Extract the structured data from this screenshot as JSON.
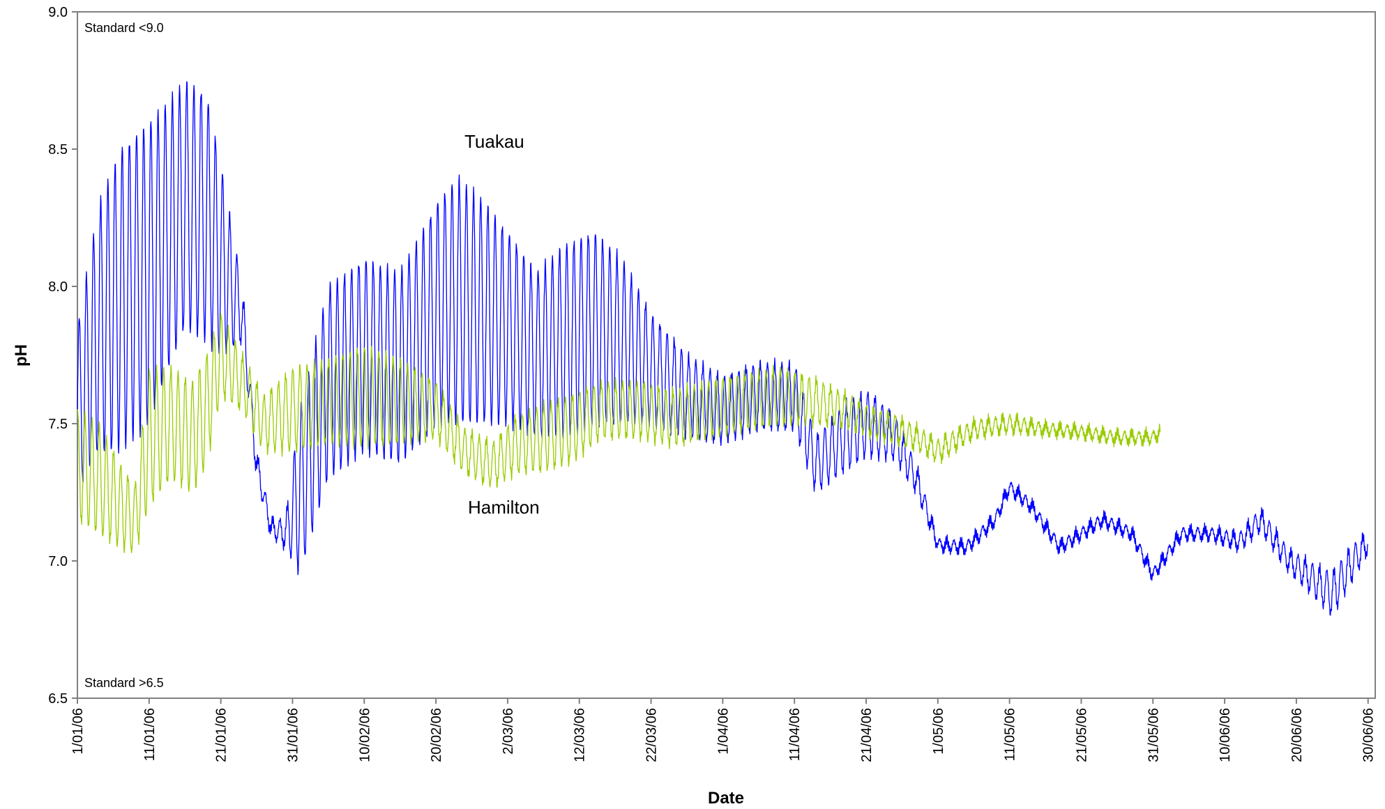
{
  "chart_data": {
    "type": "line",
    "title": "",
    "xlabel": "Date",
    "ylabel": "pH",
    "ylim": [
      6.5,
      9.0
    ],
    "xlim": [
      "2006-01-01",
      "2006-07-01"
    ],
    "yticks": [
      "6.5",
      "7.0",
      "7.5",
      "8.0",
      "8.5",
      "9.0"
    ],
    "xticks": [
      "1/01/06",
      "11/01/06",
      "21/01/06",
      "31/01/06",
      "10/02/06",
      "20/02/06",
      "2/03/06",
      "12/03/06",
      "22/03/06",
      "1/04/06",
      "11/04/06",
      "21/04/06",
      "1/05/06",
      "11/05/06",
      "21/05/06",
      "31/05/06",
      "10/06/06",
      "20/06/06",
      "30/06/06"
    ],
    "xtick_dates": [
      "2006-01-01",
      "2006-01-11",
      "2006-01-21",
      "2006-01-31",
      "2006-02-10",
      "2006-02-20",
      "2006-03-02",
      "2006-03-12",
      "2006-03-22",
      "2006-04-01",
      "2006-04-11",
      "2006-04-21",
      "2006-05-01",
      "2006-05-11",
      "2006-05-21",
      "2006-05-31",
      "2006-06-10",
      "2006-06-20",
      "2006-06-30"
    ],
    "annotations": [
      "Standard <9.0",
      "Standard >6.5"
    ],
    "grid": false,
    "series": [
      {
        "name": "Tuakau",
        "color": "#0000FF",
        "x": [
          "2006-01-01",
          "2006-01-04",
          "2006-01-07",
          "2006-01-11",
          "2006-01-13",
          "2006-01-16",
          "2006-01-19",
          "2006-01-21",
          "2006-01-24",
          "2006-01-26",
          "2006-01-28",
          "2006-01-30",
          "2006-02-01",
          "2006-02-05",
          "2006-02-10",
          "2006-02-15",
          "2006-02-20",
          "2006-02-23",
          "2006-02-27",
          "2006-03-02",
          "2006-03-06",
          "2006-03-10",
          "2006-03-14",
          "2006-03-18",
          "2006-03-22",
          "2006-03-27",
          "2006-04-01",
          "2006-04-06",
          "2006-04-11",
          "2006-04-14",
          "2006-04-18",
          "2006-04-21",
          "2006-04-25",
          "2006-04-28",
          "2006-05-01",
          "2006-05-05",
          "2006-05-09",
          "2006-05-11",
          "2006-05-14",
          "2006-05-18",
          "2006-05-21",
          "2006-05-24",
          "2006-05-28",
          "2006-05-31",
          "2006-06-04",
          "2006-06-08",
          "2006-06-12",
          "2006-06-15",
          "2006-06-19",
          "2006-06-23",
          "2006-06-25",
          "2006-06-28",
          "2006-06-30"
        ],
        "y": [
          7.55,
          7.85,
          7.95,
          8.05,
          8.15,
          8.3,
          8.25,
          8.1,
          7.9,
          7.35,
          7.12,
          7.1,
          7.25,
          7.65,
          7.75,
          7.7,
          7.9,
          7.95,
          7.9,
          7.85,
          7.75,
          7.8,
          7.85,
          7.8,
          7.7,
          7.6,
          7.55,
          7.6,
          7.6,
          7.35,
          7.45,
          7.5,
          7.45,
          7.3,
          7.06,
          7.05,
          7.15,
          7.27,
          7.2,
          7.05,
          7.1,
          7.15,
          7.1,
          6.95,
          7.1,
          7.1,
          7.07,
          7.15,
          7.0,
          6.92,
          6.88,
          7.0,
          7.07
        ],
        "amplitude": [
          0.3,
          0.45,
          0.55,
          0.55,
          0.5,
          0.45,
          0.45,
          0.35,
          0.1,
          0.05,
          0.03,
          0.05,
          0.3,
          0.35,
          0.35,
          0.35,
          0.4,
          0.45,
          0.4,
          0.35,
          0.3,
          0.35,
          0.35,
          0.3,
          0.2,
          0.15,
          0.12,
          0.12,
          0.12,
          0.1,
          0.12,
          0.12,
          0.08,
          0.05,
          0.02,
          0.02,
          0.02,
          0.02,
          0.02,
          0.02,
          0.02,
          0.02,
          0.02,
          0.02,
          0.02,
          0.02,
          0.03,
          0.04,
          0.04,
          0.06,
          0.08,
          0.06,
          0.04
        ]
      },
      {
        "name": "Hamilton",
        "color": "#99CC00",
        "x": [
          "2006-01-01",
          "2006-01-04",
          "2006-01-07",
          "2006-01-09",
          "2006-01-11",
          "2006-01-14",
          "2006-01-17",
          "2006-01-19",
          "2006-01-21",
          "2006-01-24",
          "2006-01-27",
          "2006-01-31",
          "2006-02-05",
          "2006-02-10",
          "2006-02-15",
          "2006-02-20",
          "2006-02-24",
          "2006-02-28",
          "2006-03-03",
          "2006-03-07",
          "2006-03-11",
          "2006-03-15",
          "2006-03-20",
          "2006-03-25",
          "2006-03-30",
          "2006-04-04",
          "2006-04-09",
          "2006-04-14",
          "2006-04-18",
          "2006-04-22",
          "2006-04-25",
          "2006-04-28",
          "2006-05-01",
          "2006-05-06",
          "2006-05-11",
          "2006-05-16",
          "2006-05-21",
          "2006-05-26",
          "2006-05-31",
          "2006-06-01"
        ],
        "y": [
          7.35,
          7.3,
          7.2,
          7.15,
          7.45,
          7.5,
          7.45,
          7.55,
          7.75,
          7.65,
          7.5,
          7.55,
          7.58,
          7.6,
          7.58,
          7.55,
          7.4,
          7.35,
          7.42,
          7.45,
          7.48,
          7.55,
          7.55,
          7.52,
          7.55,
          7.58,
          7.6,
          7.58,
          7.55,
          7.5,
          7.48,
          7.45,
          7.4,
          7.48,
          7.5,
          7.48,
          7.47,
          7.45,
          7.45,
          7.47
        ],
        "amplitude": [
          0.2,
          0.2,
          0.15,
          0.12,
          0.25,
          0.2,
          0.2,
          0.2,
          0.15,
          0.1,
          0.1,
          0.15,
          0.15,
          0.18,
          0.15,
          0.1,
          0.08,
          0.08,
          0.1,
          0.12,
          0.12,
          0.1,
          0.1,
          0.1,
          0.1,
          0.1,
          0.1,
          0.08,
          0.06,
          0.05,
          0.05,
          0.04,
          0.04,
          0.03,
          0.03,
          0.02,
          0.02,
          0.02,
          0.02,
          0.02
        ]
      }
    ]
  }
}
